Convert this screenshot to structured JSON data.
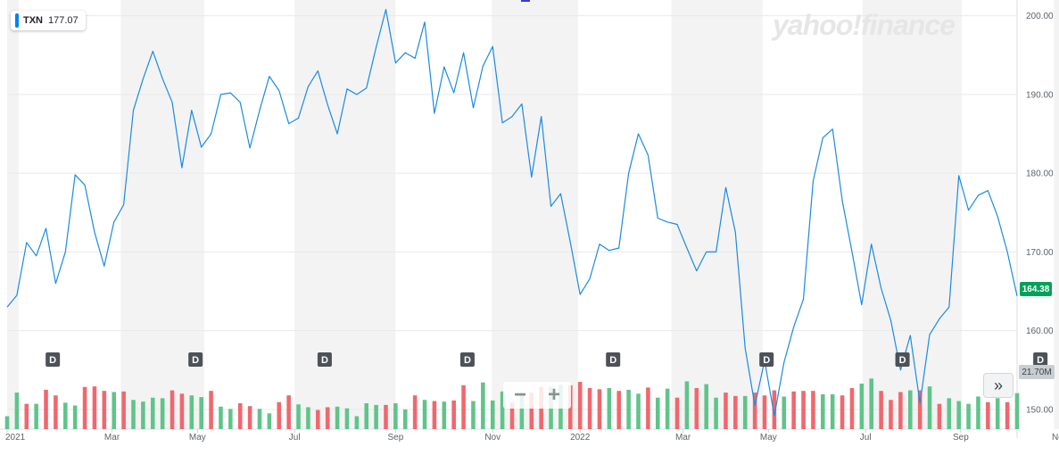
{
  "ticker": {
    "symbol": "TXN",
    "price": "177.07"
  },
  "logo_text": "yahoo!finance",
  "current_price_badge": "164.38",
  "volume_badge": "21.70M",
  "zoom": {
    "out_label": "−",
    "in_label": "+"
  },
  "forward_label": "»",
  "dividend_label": "D",
  "colors": {
    "line": "#1a8be3",
    "up_volume": "#5fc48a",
    "down_volume": "#f0676d",
    "band": "#f3f3f3",
    "grid": "#e9e9e9",
    "price_badge": "#00a25b",
    "div_marker": "#4c5257"
  },
  "chart_data": {
    "type": "line",
    "title": "",
    "xlabel": "",
    "ylabel": "",
    "ylim": [
      147.5,
      202
    ],
    "yticks": [
      "150.00",
      "160.00",
      "170.00",
      "180.00",
      "190.00",
      "200.00"
    ],
    "xticks": [
      "2021",
      "Mar",
      "May",
      "Jul",
      "Sep",
      "Nov",
      "2022",
      "Mar",
      "May",
      "Jul",
      "Sep",
      "Nov"
    ],
    "xtick_weeks": [
      0,
      10.8,
      19.6,
      29.6,
      40.0,
      50.0,
      59.0,
      69.6,
      78.4,
      88.4,
      98.2,
      108.4
    ],
    "shaded_month_bands": [
      [
        0,
        1.2
      ],
      [
        11.7,
        20.3
      ],
      [
        29.6,
        40.0
      ],
      [
        49.9,
        58.8
      ],
      [
        68.4,
        77.8
      ],
      [
        88.1,
        98.3
      ],
      [
        107.8,
        113.6
      ]
    ],
    "dividend_weeks": [
      4.7,
      19.4,
      32.7,
      47.4,
      62.4,
      78.2,
      92.2,
      106.4
    ],
    "series": [
      {
        "values": [
          163.0,
          164.5,
          171.2,
          169.5,
          173.0,
          166.0,
          170.0,
          179.8,
          178.5,
          172.5,
          168.2,
          173.8,
          176.0,
          188.0,
          192.0,
          195.5,
          192.0,
          189.0,
          180.7,
          188.0,
          183.3,
          185.0,
          190.0,
          190.2,
          189.0,
          183.2,
          188.0,
          192.3,
          190.5,
          186.3,
          187.0,
          191.0,
          193.0,
          188.7,
          185.0,
          190.7,
          190.0,
          190.8,
          196.0,
          200.8,
          194.0,
          195.3,
          194.6,
          199.2,
          187.6,
          193.5,
          190.2,
          195.3,
          188.3,
          193.6,
          196.1,
          186.4,
          187.2,
          188.8,
          179.5,
          187.2,
          175.8,
          177.4,
          171.2,
          164.6,
          166.6,
          171.0,
          170.2,
          170.5,
          180.0,
          185.0,
          182.3,
          174.3,
          173.8,
          173.5,
          170.5,
          167.6,
          170.0,
          170.0,
          178.2,
          172.5,
          157.8,
          150.5,
          156.2,
          149.2,
          156.0,
          160.5,
          164.0,
          179.0,
          184.5,
          185.6,
          176.5,
          170.0,
          163.3,
          171.0,
          165.4,
          161.3,
          155.0,
          159.4,
          150.8,
          159.5,
          161.5,
          163.0,
          179.7,
          175.3,
          177.2,
          177.8,
          174.5,
          170.0,
          164.4
        ]
      }
    ],
    "volume": {
      "values": [
        2.3,
        6.5,
        4.5,
        4.5,
        7.0,
        6.0,
        4.7,
        4.2,
        7.5,
        7.6,
        6.8,
        6.6,
        6.7,
        5.2,
        4.9,
        5.6,
        5.5,
        6.9,
        6.3,
        6.0,
        5.7,
        6.8,
        4.0,
        3.6,
        4.6,
        4.1,
        3.6,
        2.8,
        4.8,
        6.0,
        4.4,
        3.9,
        3.4,
        3.9,
        4.0,
        3.7,
        2.3,
        4.6,
        4.3,
        4.3,
        4.6,
        3.5,
        6.0,
        5.2,
        5.0,
        4.9,
        5.1,
        7.8,
        5.0,
        8.3,
        5.1,
        6.7,
        4.8,
        6.5,
        6.5,
        7.5,
        7.5,
        7.9,
        7.8,
        8.4,
        7.3,
        7.1,
        7.3,
        6.8,
        7.0,
        6.3,
        7.4,
        5.6,
        7.2,
        5.6,
        8.5,
        7.3,
        8.0,
        5.6,
        6.5,
        5.9,
        5.9,
        6.5,
        6.0,
        6.9,
        5.8,
        6.7,
        6.8,
        6.8,
        6.2,
        6.2,
        6.0,
        7.3,
        8.1,
        9.0,
        6.8,
        5.2,
        6.6,
        6.9,
        6.9,
        7.6,
        4.5,
        5.5,
        5.0,
        4.5,
        5.8,
        4.8,
        5.5,
        4.8,
        6.4
      ],
      "direction": [
        "up",
        "up",
        "down",
        "up",
        "down",
        "down",
        "up",
        "up",
        "down",
        "down",
        "down",
        "up",
        "down",
        "up",
        "up",
        "up",
        "up",
        "down",
        "down",
        "up",
        "up",
        "down",
        "up",
        "up",
        "down",
        "down",
        "up",
        "up",
        "down",
        "down",
        "up",
        "up",
        "down",
        "down",
        "up",
        "up",
        "up",
        "up",
        "up",
        "down",
        "up",
        "up",
        "down",
        "up",
        "down",
        "up",
        "down",
        "down",
        "up",
        "up",
        "up",
        "up",
        "down",
        "up",
        "down",
        "down",
        "up",
        "up",
        "down",
        "down",
        "down",
        "down",
        "up",
        "down",
        "up",
        "up",
        "down",
        "up",
        "up",
        "down",
        "up",
        "down",
        "up",
        "up",
        "down",
        "down",
        "up",
        "down",
        "down",
        "down",
        "up",
        "down",
        "down",
        "down",
        "up",
        "up",
        "down",
        "down",
        "up",
        "up",
        "down",
        "down",
        "down",
        "up",
        "down",
        "up",
        "down",
        "up",
        "up",
        "up",
        "up",
        "down",
        "up",
        "down",
        "up"
      ],
      "ylim": [
        0,
        20
      ]
    }
  }
}
